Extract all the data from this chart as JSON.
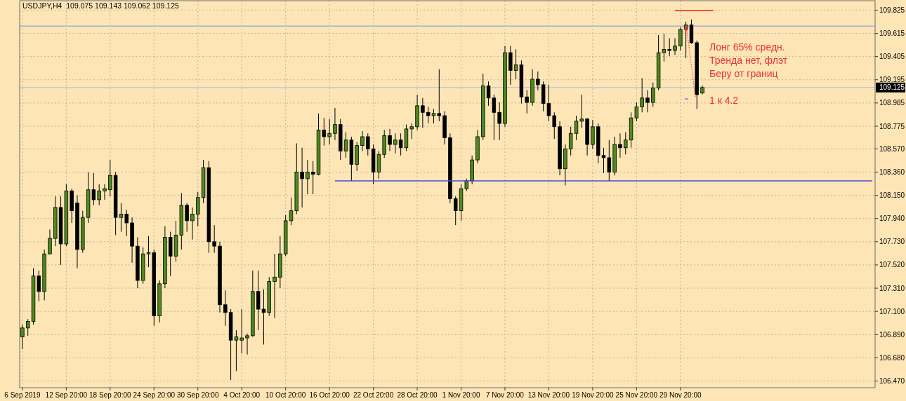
{
  "chart_data": {
    "type": "candlestick",
    "title": "USDJPY,H4  109.075 109.143 109.062 109.125",
    "categories": [
      "6 Sep 2019",
      null,
      null,
      null,
      null,
      null,
      null,
      null,
      "12 Sep 20:00",
      null,
      null,
      null,
      null,
      null,
      null,
      null,
      "18 Sep 20:00",
      null,
      null,
      null,
      null,
      null,
      null,
      null,
      "24 Sep 20:00",
      null,
      null,
      null,
      null,
      null,
      null,
      null,
      "30 Sep 20:00",
      null,
      null,
      null,
      null,
      null,
      null,
      null,
      "4 Oct 20:00",
      null,
      null,
      null,
      null,
      null,
      null,
      null,
      "10 Oct 20:00",
      null,
      null,
      null,
      null,
      null,
      null,
      null,
      "16 Oct 20:00",
      null,
      null,
      null,
      null,
      null,
      null,
      null,
      "22 Oct 20:00",
      null,
      null,
      null,
      null,
      null,
      null,
      null,
      "28 Oct 20:00",
      null,
      null,
      null,
      null,
      null,
      null,
      null,
      "1 Nov 20:00",
      null,
      null,
      null,
      null,
      null,
      null,
      null,
      "7 Nov 20:00",
      null,
      null,
      null,
      null,
      null,
      null,
      null,
      "13 Nov 20:00",
      null,
      null,
      null,
      null,
      null,
      null,
      null,
      "19 Nov 20:00",
      null,
      null,
      null,
      null,
      null,
      null,
      null,
      "25 Nov 20:00",
      null,
      null,
      null,
      null,
      null,
      null,
      null,
      "29 Nov 20:00",
      null,
      null,
      null,
      null,
      null,
      null,
      null,
      null,
      null,
      null,
      null,
      null,
      null,
      null,
      null,
      null,
      null,
      null,
      null,
      null,
      null,
      null,
      null,
      null,
      null,
      null,
      null,
      null,
      null,
      null,
      null,
      null,
      null,
      null,
      null
    ],
    "colors": [
      "#4d8a1b",
      "#4d8a1b",
      "#4d8a1b",
      "#000000",
      "#4d8a1b",
      "#4d8a1b",
      "#4d8a1b",
      "#000000",
      "#4d8a1b",
      "#000000",
      "#000000",
      "#4d8a1b",
      "#4d8a1b",
      "#000000",
      "#4d8a1b",
      "#4d8a1b",
      "#4d8a1b",
      "#000000",
      "#4d8a1b",
      "#000000",
      "#000000",
      "#000000",
      "#4d8a1b",
      "#4d8a1b",
      "#000000",
      "#4d8a1b",
      "#4d8a1b",
      "#000000",
      "#4d8a1b",
      "#4d8a1b",
      "#000000",
      "#4d8a1b",
      "#4d8a1b",
      "#4d8a1b",
      "#000000",
      "#000000",
      "#000000",
      "#000000",
      "#000000",
      "#4d8a1b",
      "#4d8a1b",
      "#4d8a1b",
      "#4d8a1b",
      "#000000",
      "#000000",
      "#4d8a1b",
      "#4d8a1b",
      "#4d8a1b",
      "#4d8a1b",
      "#4d8a1b",
      "#4d8a1b",
      "#000000",
      "#4d8a1b",
      "#000000",
      "#4d8a1b",
      "#000000",
      "#4d8a1b",
      "#4d8a1b",
      "#000000",
      "#4d8a1b",
      "#000000",
      "#4d8a1b",
      "#4d8a1b",
      "#000000",
      "#000000",
      "#4d8a1b",
      "#4d8a1b",
      "#000000",
      "#4d8a1b",
      "#000000",
      "#4d8a1b",
      "#4d8a1b",
      "#4d8a1b",
      "#000000",
      "#000000",
      "#4d8a1b",
      "#000000",
      "#000000",
      "#000000",
      "#000000",
      "#4d8a1b",
      "#4d8a1b",
      "#4d8a1b",
      "#4d8a1b",
      "#4d8a1b",
      "#000000",
      "#000000",
      "#000000",
      "#4d8a1b",
      "#000000",
      "#4d8a1b",
      "#000000",
      "#000000",
      "#4d8a1b",
      "#000000",
      "#000000",
      "#000000",
      "#000000",
      "#000000",
      "#4d8a1b",
      "#4d8a1b",
      "#4d8a1b",
      "#4d8a1b",
      "#000000",
      "#4d8a1b",
      "#000000",
      "#000000",
      "#000000",
      "#4d8a1b",
      "#000000",
      "#4d8a1b",
      "#4d8a1b",
      "#4d8a1b",
      "#4d8a1b",
      "#000000",
      "#4d8a1b",
      "#4d8a1b",
      "#4d8a1b",
      "#000000",
      "#4d8a1b",
      "#4d8a1b",
      "#4d8a1b",
      "#000000",
      "#000000",
      "#4d8a1b",
      null,
      null,
      null,
      null,
      null,
      null,
      null,
      null,
      null,
      null,
      null,
      null,
      null,
      null,
      null,
      null,
      null,
      null,
      null,
      null,
      null,
      null,
      null,
      null,
      null,
      null,
      null,
      null,
      null,
      null,
      null
    ],
    "ohlc": [
      [
        106.87,
        106.98,
        106.76,
        106.95
      ],
      [
        106.95,
        107.03,
        106.88,
        107.01
      ],
      [
        107.01,
        107.49,
        106.98,
        107.42
      ],
      [
        107.42,
        107.47,
        107.19,
        107.28
      ],
      [
        107.28,
        107.66,
        107.2,
        107.62
      ],
      [
        107.62,
        107.84,
        107.62,
        107.76
      ],
      [
        107.76,
        108.14,
        107.69,
        108.04
      ],
      [
        108.04,
        108.14,
        107.52,
        107.71
      ],
      [
        107.71,
        108.25,
        107.69,
        108.19
      ],
      [
        108.19,
        108.21,
        107.9,
        108.01
      ],
      [
        108.08,
        108.15,
        107.49,
        107.66
      ],
      [
        107.66,
        108.01,
        107.63,
        107.95
      ],
      [
        107.95,
        108.36,
        107.9,
        108.2
      ],
      [
        108.2,
        108.35,
        108.06,
        108.11
      ],
      [
        108.11,
        108.25,
        108.06,
        108.19
      ],
      [
        108.19,
        108.25,
        108.11,
        108.21
      ],
      [
        108.2,
        108.47,
        108.14,
        108.33
      ],
      [
        108.33,
        108.36,
        107.79,
        107.95
      ],
      [
        107.95,
        108.08,
        107.82,
        107.98
      ],
      [
        107.98,
        108.02,
        107.78,
        107.9
      ],
      [
        107.9,
        107.95,
        107.54,
        107.69
      ],
      [
        107.69,
        107.77,
        107.31,
        107.38
      ],
      [
        107.38,
        107.68,
        107.35,
        107.62
      ],
      [
        107.62,
        107.78,
        107.5,
        107.63
      ],
      [
        107.63,
        107.66,
        106.97,
        107.06
      ],
      [
        107.06,
        107.38,
        107.0,
        107.35
      ],
      [
        107.35,
        107.87,
        107.31,
        107.77
      ],
      [
        107.77,
        107.82,
        107.42,
        107.6
      ],
      [
        107.6,
        107.92,
        107.55,
        107.79
      ],
      [
        107.79,
        108.17,
        107.66,
        108.06
      ],
      [
        108.06,
        108.08,
        107.82,
        107.92
      ],
      [
        107.92,
        108.04,
        107.75,
        107.98
      ],
      [
        107.98,
        108.18,
        107.87,
        108.13
      ],
      [
        108.13,
        108.47,
        108.08,
        108.4
      ],
      [
        108.4,
        108.46,
        107.63,
        107.73
      ],
      [
        107.73,
        107.88,
        107.63,
        107.69
      ],
      [
        107.69,
        107.73,
        107.09,
        107.16
      ],
      [
        107.16,
        107.29,
        106.97,
        107.09
      ],
      [
        107.09,
        107.12,
        106.48,
        106.84
      ],
      [
        106.84,
        106.93,
        106.56,
        106.87
      ],
      [
        106.84,
        107.12,
        106.72,
        106.86
      ],
      [
        106.86,
        106.9,
        106.71,
        106.88
      ],
      [
        106.88,
        107.47,
        106.87,
        107.28
      ],
      [
        107.28,
        107.47,
        106.93,
        107.12
      ],
      [
        107.12,
        107.3,
        106.8,
        107.09
      ],
      [
        107.09,
        107.41,
        107.06,
        107.37
      ],
      [
        107.37,
        107.62,
        107.04,
        107.41
      ],
      [
        107.41,
        107.78,
        107.31,
        107.62
      ],
      [
        107.62,
        107.97,
        107.6,
        107.92
      ],
      [
        107.92,
        108.13,
        107.88,
        108.01
      ],
      [
        108.01,
        108.62,
        107.98,
        108.36
      ],
      [
        108.36,
        108.58,
        108.04,
        108.3
      ],
      [
        108.3,
        108.47,
        108.16,
        108.36
      ],
      [
        108.36,
        108.46,
        108.16,
        108.34
      ],
      [
        108.34,
        108.89,
        108.33,
        108.74
      ],
      [
        108.74,
        108.85,
        108.6,
        108.68
      ],
      [
        108.68,
        108.84,
        108.61,
        108.71
      ],
      [
        108.71,
        108.94,
        108.65,
        108.79
      ],
      [
        108.79,
        108.84,
        108.47,
        108.55
      ],
      [
        108.55,
        108.72,
        108.49,
        108.65
      ],
      [
        108.65,
        108.68,
        108.28,
        108.43
      ],
      [
        108.43,
        108.63,
        108.37,
        108.6
      ],
      [
        108.6,
        108.73,
        108.55,
        108.68
      ],
      [
        108.68,
        108.71,
        108.51,
        108.57
      ],
      [
        108.57,
        108.61,
        108.25,
        108.36
      ],
      [
        108.36,
        108.55,
        108.3,
        108.52
      ],
      [
        108.52,
        108.74,
        108.49,
        108.69
      ],
      [
        108.69,
        108.75,
        108.55,
        108.61
      ],
      [
        108.61,
        108.71,
        108.53,
        108.65
      ],
      [
        108.65,
        108.71,
        108.51,
        108.58
      ],
      [
        108.58,
        108.79,
        108.55,
        108.75
      ],
      [
        108.75,
        108.8,
        108.66,
        108.77
      ],
      [
        108.77,
        109.06,
        108.74,
        108.96
      ],
      [
        108.96,
        109.03,
        108.76,
        108.9
      ],
      [
        108.9,
        108.95,
        108.8,
        108.87
      ],
      [
        108.87,
        108.93,
        108.8,
        108.89
      ],
      [
        108.89,
        109.29,
        108.82,
        108.87
      ],
      [
        108.87,
        108.91,
        108.61,
        108.67
      ],
      [
        108.67,
        108.71,
        108.08,
        108.12
      ],
      [
        108.12,
        108.14,
        107.88,
        108.01
      ],
      [
        108.01,
        108.25,
        107.92,
        108.21
      ],
      [
        108.21,
        108.3,
        108.19,
        108.28
      ],
      [
        108.28,
        108.51,
        108.25,
        108.47
      ],
      [
        108.47,
        108.74,
        108.44,
        108.68
      ],
      [
        108.68,
        109.25,
        108.65,
        109.14
      ],
      [
        109.14,
        109.18,
        108.96,
        109.03
      ],
      [
        109.03,
        109.06,
        108.65,
        108.9
      ],
      [
        108.9,
        108.99,
        108.65,
        108.8
      ],
      [
        108.8,
        109.5,
        108.77,
        109.44
      ],
      [
        109.44,
        109.5,
        109.15,
        109.28
      ],
      [
        109.28,
        109.47,
        109.2,
        109.33
      ],
      [
        109.33,
        109.37,
        108.98,
        109.04
      ],
      [
        109.04,
        109.1,
        108.89,
        108.99
      ],
      [
        108.99,
        109.29,
        108.96,
        109.2
      ],
      [
        109.2,
        109.27,
        109.1,
        109.15
      ],
      [
        109.15,
        109.18,
        108.91,
        108.98
      ],
      [
        108.98,
        109.15,
        108.82,
        108.87
      ],
      [
        108.87,
        108.9,
        108.66,
        108.77
      ],
      [
        108.77,
        108.82,
        108.33,
        108.39
      ],
      [
        108.39,
        108.61,
        108.24,
        108.57
      ],
      [
        108.57,
        108.77,
        108.51,
        108.71
      ],
      [
        108.71,
        108.87,
        108.65,
        108.82
      ],
      [
        108.82,
        109.06,
        108.76,
        108.84
      ],
      [
        108.84,
        108.85,
        108.51,
        108.61
      ],
      [
        108.61,
        108.83,
        108.57,
        108.77
      ],
      [
        108.77,
        108.8,
        108.44,
        108.51
      ],
      [
        108.51,
        108.58,
        108.35,
        108.49
      ],
      [
        108.49,
        108.65,
        108.28,
        108.36
      ],
      [
        108.36,
        108.68,
        108.33,
        108.61
      ],
      [
        108.61,
        108.71,
        108.49,
        108.58
      ],
      [
        108.58,
        108.72,
        108.52,
        108.65
      ],
      [
        108.65,
        108.9,
        108.58,
        108.85
      ],
      [
        108.85,
        108.99,
        108.82,
        108.95
      ],
      [
        108.95,
        109.21,
        108.9,
        109.03
      ],
      [
        109.03,
        109.1,
        108.9,
        108.99
      ],
      [
        108.99,
        109.17,
        108.95,
        109.12
      ],
      [
        109.12,
        109.6,
        109.1,
        109.44
      ],
      [
        109.44,
        109.61,
        109.36,
        109.47
      ],
      [
        109.47,
        109.57,
        109.41,
        109.46
      ],
      [
        109.46,
        109.57,
        109.42,
        109.5
      ],
      [
        109.5,
        109.67,
        109.46,
        109.65
      ],
      [
        109.65,
        109.72,
        109.39,
        109.69
      ],
      [
        109.69,
        109.74,
        109.52,
        109.53
      ],
      [
        109.53,
        109.55,
        108.93,
        109.06
      ],
      [
        109.075,
        109.143,
        109.062,
        109.125
      ],
      null,
      null,
      null,
      null,
      null,
      null,
      null,
      null,
      null,
      null,
      null,
      null,
      null,
      null,
      null,
      null,
      null,
      null,
      null,
      null,
      null,
      null,
      null,
      null,
      null,
      null,
      null,
      null,
      null,
      null,
      null
    ],
    "series": [
      {
        "type": "line",
        "color": "#4646e6",
        "values": [
          null,
          null,
          null,
          null,
          null,
          null,
          null,
          null,
          null,
          null,
          null,
          null,
          null,
          null,
          null,
          null,
          null,
          null,
          null,
          null,
          null,
          null,
          null,
          null,
          null,
          null,
          null,
          null,
          null,
          null,
          null,
          null,
          null,
          null,
          null,
          null,
          null,
          null,
          null,
          null,
          null,
          null,
          null,
          null,
          null,
          null,
          null,
          null,
          null,
          null,
          null,
          null,
          null,
          null,
          null,
          null,
          null,
          108.28,
          108.28,
          108.28,
          108.28,
          108.28,
          108.28,
          108.28,
          108.28,
          108.28,
          108.28,
          108.28,
          108.28,
          108.28,
          108.28,
          108.28,
          108.28,
          108.28,
          108.28,
          108.28,
          108.28,
          108.28,
          108.28,
          108.28,
          108.28,
          108.28,
          108.28,
          108.28,
          108.28,
          108.28,
          108.28,
          108.28,
          108.28,
          108.28,
          108.28,
          108.28,
          108.28,
          108.28,
          108.28,
          108.28,
          108.28,
          108.28,
          108.28,
          108.28,
          108.28,
          108.28,
          108.28,
          108.28,
          108.28,
          108.28,
          108.28,
          108.28,
          108.28,
          108.28,
          108.28,
          108.28,
          108.28,
          108.28,
          108.28,
          108.28,
          108.28,
          108.28,
          108.28,
          108.28,
          108.28,
          108.28,
          108.28,
          108.28,
          108.28,
          108.28,
          108.28,
          108.28,
          108.28,
          108.28,
          108.28,
          108.28,
          108.28,
          108.28,
          108.28,
          108.28,
          108.28,
          108.28,
          108.28,
          108.28,
          108.28,
          108.28,
          108.28,
          108.28,
          108.28,
          108.28,
          108.28,
          108.28,
          108.28,
          108.28,
          108.28,
          108.28,
          108.28,
          108.28,
          108.28,
          108.28
        ]
      },
      {
        "type": "line",
        "color": "#f02020",
        "values": [
          null,
          null,
          null,
          null,
          null,
          null,
          null,
          null,
          null,
          null,
          null,
          null,
          null,
          null,
          null,
          null,
          null,
          null,
          null,
          null,
          null,
          null,
          null,
          null,
          null,
          null,
          null,
          null,
          null,
          null,
          null,
          null,
          null,
          null,
          null,
          null,
          null,
          null,
          null,
          null,
          null,
          null,
          null,
          null,
          null,
          null,
          null,
          null,
          null,
          null,
          null,
          null,
          null,
          null,
          null,
          null,
          null,
          null,
          null,
          null,
          null,
          null,
          null,
          null,
          null,
          null,
          null,
          null,
          null,
          null,
          null,
          null,
          null,
          null,
          null,
          null,
          null,
          null,
          null,
          null,
          null,
          null,
          null,
          null,
          null,
          null,
          null,
          null,
          null,
          null,
          null,
          null,
          null,
          null,
          null,
          null,
          null,
          null,
          null,
          null,
          null,
          null,
          null,
          null,
          null,
          null,
          null,
          null,
          null,
          null,
          null,
          null,
          null,
          null,
          null,
          null,
          null,
          null,
          null,
          109.82,
          109.82,
          109.82,
          109.82,
          109.82,
          109.82,
          109.82,
          109.82,
          null,
          null,
          null,
          null,
          null,
          null,
          null,
          null,
          null,
          null,
          null,
          null,
          null,
          null,
          null,
          null,
          null,
          null,
          null,
          null,
          null,
          null,
          null,
          null,
          null,
          null,
          null,
          null,
          null
        ]
      }
    ],
    "ylim": [
      106.41,
      109.91
    ],
    "yticks": [
      {
        "value": 106.47,
        "label": "106.470"
      },
      {
        "value": 106.68,
        "label": "106.680"
      },
      {
        "value": 106.89,
        "label": "106.890"
      },
      {
        "value": 107.1,
        "label": "107.100"
      },
      {
        "value": 107.31,
        "label": "107.310"
      },
      {
        "value": 107.52,
        "label": "107.520"
      },
      {
        "value": 107.73,
        "label": "107.730"
      },
      {
        "value": 107.94,
        "label": "107.940"
      },
      {
        "value": 108.15,
        "label": "108.150"
      },
      {
        "value": 108.36,
        "label": "108.360"
      },
      {
        "value": 108.57,
        "label": "108.570"
      },
      108.775,
      108.985,
      109.195,
      109.405,
      109.615,
      109.825
    ],
    "grid": true,
    "ref_lines": [
      {
        "axis": "y",
        "value": 109.68,
        "color": "#9fb0dc"
      },
      {
        "axis": "y",
        "value": 109.125,
        "label": "109.125",
        "color": "#c4c8d8"
      }
    ],
    "annotations": [
      "Лонг 65% средн.",
      "Тренда нет, флэт",
      "Беру от границ",
      "1 к 4.2"
    ]
  }
}
